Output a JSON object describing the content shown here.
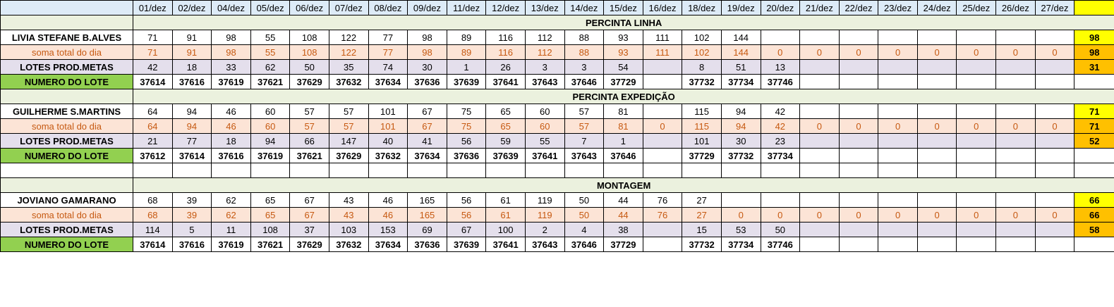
{
  "dates": [
    "01/dez",
    "02/dez",
    "04/dez",
    "05/dez",
    "06/dez",
    "07/dez",
    "08/dez",
    "09/dez",
    "11/dez",
    "12/dez",
    "13/dez",
    "14/dez",
    "15/dez",
    "16/dez",
    "18/dez",
    "19/dez",
    "20/dez",
    "21/dez",
    "22/dez",
    "23/dez",
    "24/dez",
    "25/dez",
    "26/dez",
    "27/dez"
  ],
  "colors": {
    "header": "#ddebf7",
    "section": "#ebf1de",
    "soma": "#fce4d6",
    "soma_text": "#c65911",
    "lotes": "#e4dfec",
    "lote_label": "#92d050",
    "sum_yellow": "#ffff00",
    "sum_orange": "#ffc000"
  },
  "sections": [
    {
      "title": "PERCINTA LINHA",
      "name": "LIVIA STEFANE B.ALVES",
      "name_values": [
        "71",
        "91",
        "98",
        "55",
        "108",
        "122",
        "77",
        "98",
        "89",
        "116",
        "112",
        "88",
        "93",
        "111",
        "102",
        "144",
        "",
        "",
        "",
        "",
        "",
        "",
        "",
        ""
      ],
      "name_sum": "98",
      "soma_label": "soma total  do dia",
      "soma_values": [
        "71",
        "91",
        "98",
        "55",
        "108",
        "122",
        "77",
        "98",
        "89",
        "116",
        "112",
        "88",
        "93",
        "111",
        "102",
        "144",
        "0",
        "0",
        "0",
        "0",
        "0",
        "0",
        "0",
        "0"
      ],
      "soma_sum": "98",
      "lotes_label": "LOTES PROD.METAS",
      "lotes_values": [
        "42",
        "18",
        "33",
        "62",
        "50",
        "35",
        "74",
        "30",
        "1",
        "26",
        "3",
        "3",
        "54",
        "",
        "8",
        "51",
        "13",
        "",
        "",
        "",
        "",
        "",
        "",
        ""
      ],
      "lotes_sum": "31",
      "lote_label": "NUMERO DO LOTE",
      "lote_values": [
        "37614",
        "37616",
        "37619",
        "37621",
        "37629",
        "37632",
        "37634",
        "37636",
        "37639",
        "37641",
        "37643",
        "37646",
        "37729",
        "",
        "37732",
        "37734",
        "37746",
        "",
        "",
        "",
        "",
        "",
        "",
        ""
      ]
    },
    {
      "title": "PERCINTA EXPEDIÇÃO",
      "name": "GUILHERME S.MARTINS",
      "name_values": [
        "64",
        "94",
        "46",
        "60",
        "57",
        "57",
        "101",
        "67",
        "75",
        "65",
        "60",
        "57",
        "81",
        "",
        "115",
        "94",
        "42",
        "",
        "",
        "",
        "",
        "",
        "",
        ""
      ],
      "name_sum": "71",
      "soma_label": "soma total  do dia",
      "soma_values": [
        "64",
        "94",
        "46",
        "60",
        "57",
        "57",
        "101",
        "67",
        "75",
        "65",
        "60",
        "57",
        "81",
        "0",
        "115",
        "94",
        "42",
        "0",
        "0",
        "0",
        "0",
        "0",
        "0",
        "0"
      ],
      "soma_sum": "71",
      "lotes_label": "LOTES PROD.METAS",
      "lotes_values": [
        "21",
        "77",
        "18",
        "94",
        "66",
        "147",
        "40",
        "41",
        "56",
        "59",
        "55",
        "7",
        "1",
        "",
        "101",
        "30",
        "23",
        "",
        "",
        "",
        "",
        "",
        "",
        ""
      ],
      "lotes_sum": "52",
      "lote_label": "NUMERO DO LOTE",
      "lote_values": [
        "37612",
        "37614",
        "37616",
        "37619",
        "37621",
        "37629",
        "37632",
        "37634",
        "37636",
        "37639",
        "37641",
        "37643",
        "37646",
        "",
        "37729",
        "37732",
        "37734",
        "",
        "",
        "",
        "",
        "",
        "",
        ""
      ]
    },
    {
      "title": "MONTAGEM",
      "name": "JOVIANO GAMARANO",
      "name_values": [
        "68",
        "39",
        "62",
        "65",
        "67",
        "43",
        "46",
        "165",
        "56",
        "61",
        "119",
        "50",
        "44",
        "76",
        "27",
        "",
        "",
        "",
        "",
        "",
        "",
        "",
        "",
        ""
      ],
      "name_sum": "66",
      "soma_label": "soma total  do dia",
      "soma_values": [
        "68",
        "39",
        "62",
        "65",
        "67",
        "43",
        "46",
        "165",
        "56",
        "61",
        "119",
        "50",
        "44",
        "76",
        "27",
        "0",
        "0",
        "0",
        "0",
        "0",
        "0",
        "0",
        "0",
        "0"
      ],
      "soma_sum": "66",
      "lotes_label": "LOTES PROD.METAS",
      "lotes_values": [
        "114",
        "5",
        "11",
        "108",
        "37",
        "103",
        "153",
        "69",
        "67",
        "100",
        "2",
        "4",
        "38",
        "",
        "15",
        "53",
        "50",
        "",
        "",
        "",
        "",
        "",
        "",
        ""
      ],
      "lotes_sum": "58",
      "lote_label": "NUMERO DO LOTE",
      "lote_values": [
        "37614",
        "37616",
        "37619",
        "37621",
        "37629",
        "37632",
        "37634",
        "37636",
        "37639",
        "37641",
        "37643",
        "37646",
        "37729",
        "",
        "37732",
        "37734",
        "37746",
        "",
        "",
        "",
        "",
        "",
        "",
        ""
      ]
    }
  ]
}
